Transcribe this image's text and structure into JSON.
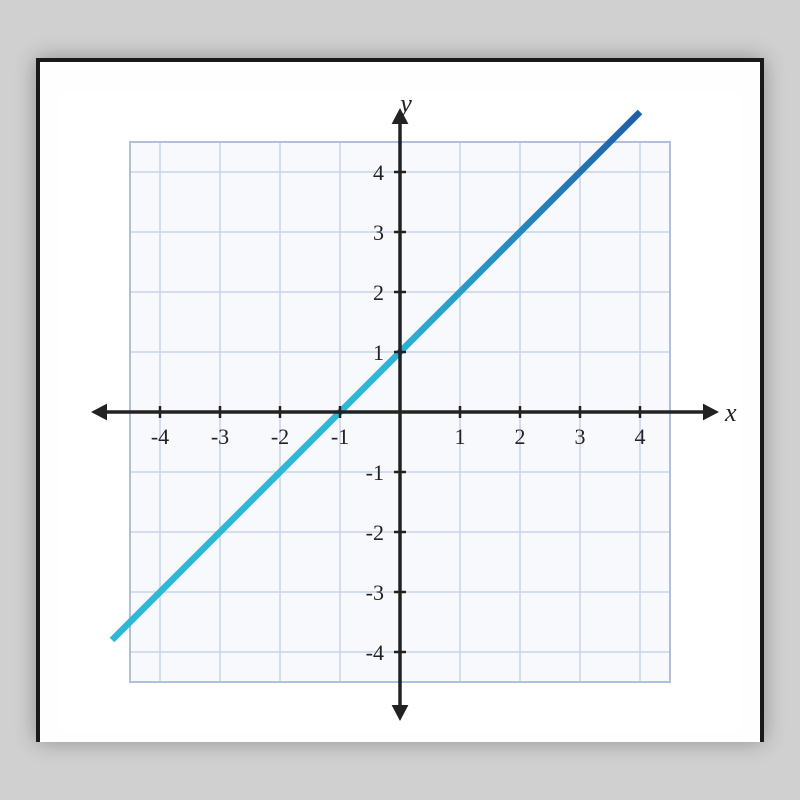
{
  "chart": {
    "type": "line",
    "xlim": [
      -4.5,
      4.5
    ],
    "ylim": [
      -4.5,
      4.5
    ],
    "xtick_values": [
      -4,
      -3,
      -2,
      -1,
      1,
      2,
      3,
      4
    ],
    "ytick_values": [
      -4,
      -3,
      -2,
      -1,
      1,
      2,
      3,
      4
    ],
    "xlabel": "x",
    "ylabel": "y",
    "axis_label_fontsize": 26,
    "axis_label_font": "italic serif",
    "tick_fontsize": 22,
    "tick_font": "serif",
    "grid_color": "#c8d4e8",
    "grid_stroke_width": 1.5,
    "grid_border_color": "#b0c0d8",
    "grid_border_stroke_width": 2,
    "axis_color": "#222222",
    "axis_stroke_width": 3.5,
    "tick_length": 6,
    "background_color": "#ffffff",
    "plot_background": "#f8f9fc",
    "cell_size": 60,
    "line": {
      "slope": 1,
      "intercept": 1,
      "color_near": "#2eb8d6",
      "color_far": "#1e5fa8",
      "stroke_width": 6.5,
      "x_start": -4.8,
      "x_end": 4.0
    },
    "arrow_size": 14
  }
}
